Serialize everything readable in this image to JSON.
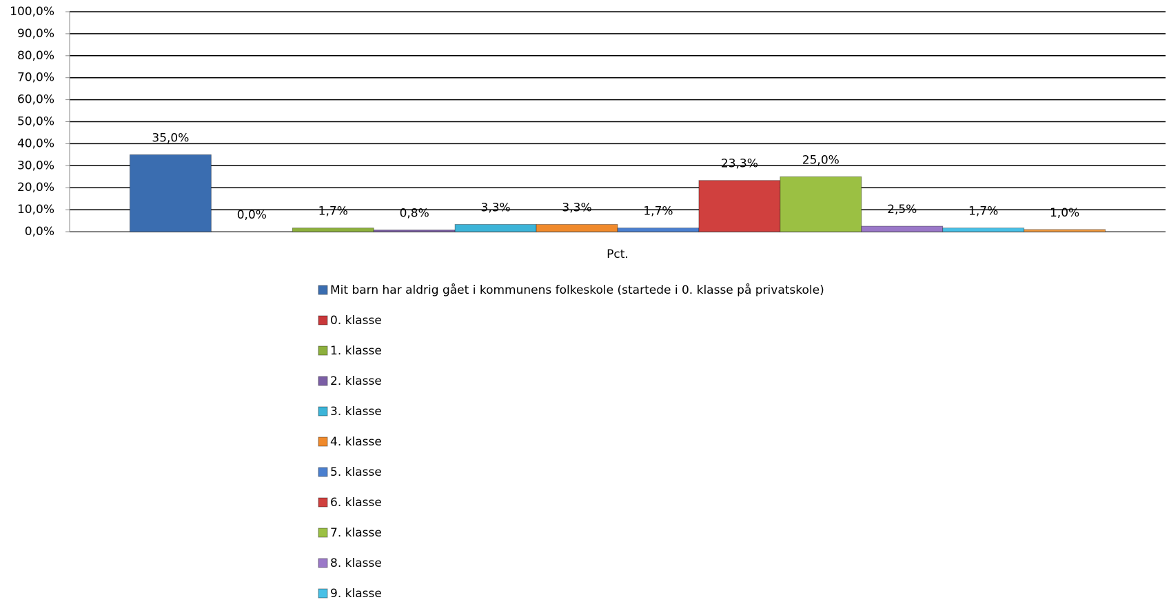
{
  "chart_data": {
    "type": "bar",
    "categories": [
      "Pct."
    ],
    "series": [
      {
        "name": "Mit barn har aldrig gået i kommunens folkeskole (startede i 0. klasse på privatskole)",
        "color": "#3a6db0",
        "values": [
          35.0
        ],
        "value_labels": [
          "35,0%"
        ]
      },
      {
        "name": "0. klasse",
        "color": "#c9383a",
        "values": [
          0.0
        ],
        "value_labels": [
          "0,0%"
        ]
      },
      {
        "name": "1. klasse",
        "color": "#8db03d",
        "values": [
          1.7
        ],
        "value_labels": [
          "1,7%"
        ]
      },
      {
        "name": "2. klasse",
        "color": "#7b5ea5",
        "values": [
          0.8
        ],
        "value_labels": [
          "0,8%"
        ]
      },
      {
        "name": "3. klasse",
        "color": "#3cb4d8",
        "values": [
          3.3
        ],
        "value_labels": [
          "3,3%"
        ]
      },
      {
        "name": "4. klasse",
        "color": "#f08a2c",
        "values": [
          3.3
        ],
        "value_labels": [
          "3,3%"
        ]
      },
      {
        "name": "5. klasse",
        "color": "#4a7fcf",
        "values": [
          1.7
        ],
        "value_labels": [
          "1,7%"
        ]
      },
      {
        "name": "6. klasse",
        "color": "#d0403e",
        "values": [
          23.3
        ],
        "value_labels": [
          "23,3%"
        ]
      },
      {
        "name": "7. klasse",
        "color": "#9bc043",
        "values": [
          25.0
        ],
        "value_labels": [
          "25,0%"
        ]
      },
      {
        "name": "8. klasse",
        "color": "#9a78c8",
        "values": [
          2.5
        ],
        "value_labels": [
          "2,5%"
        ]
      },
      {
        "name": "9. klasse",
        "color": "#48c0e6",
        "values": [
          1.7
        ],
        "value_labels": [
          "1,7%"
        ]
      },
      {
        "color": "#f09a40",
        "values": [
          1.0
        ],
        "value_labels": [
          "1,0%"
        ]
      }
    ],
    "ylim": [
      0,
      100
    ],
    "yticks": [
      {
        "value": 0,
        "label": "0,0%"
      },
      {
        "value": 10,
        "label": "10,0%"
      },
      {
        "value": 20,
        "label": "20,0%"
      },
      {
        "value": 30,
        "label": "30,0%"
      },
      {
        "value": 40,
        "label": "40,0%"
      },
      {
        "value": 50,
        "label": "50,0%"
      },
      {
        "value": 60,
        "label": "60,0%"
      },
      {
        "value": 70,
        "label": "70,0%"
      },
      {
        "value": 80,
        "label": "80,0%"
      },
      {
        "value": 90,
        "label": "90,0%"
      },
      {
        "value": 100,
        "label": "100,0%"
      }
    ],
    "grid": true,
    "legend": "bottom"
  }
}
